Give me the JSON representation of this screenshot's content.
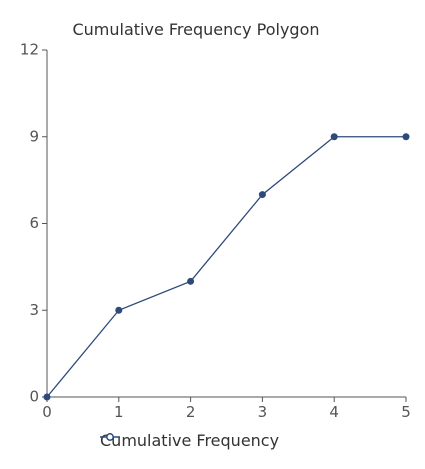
{
  "chart_data": {
    "type": "line",
    "title": "Cumulative Frequency Polygon",
    "x": [
      0,
      1,
      2,
      3,
      4,
      5
    ],
    "series": [
      {
        "name": "Cumulative Frequency",
        "values": [
          0,
          3,
          4,
          7,
          9,
          9
        ],
        "color": "#2e4a7a"
      }
    ],
    "xlim": [
      0,
      5
    ],
    "ylim": [
      0,
      12
    ],
    "xticks": [
      "0",
      "1",
      "2",
      "3",
      "4",
      "5"
    ],
    "yticks": [
      "0",
      "3",
      "6",
      "9",
      "12"
    ],
    "grid": false,
    "legend": "bottom-left"
  }
}
